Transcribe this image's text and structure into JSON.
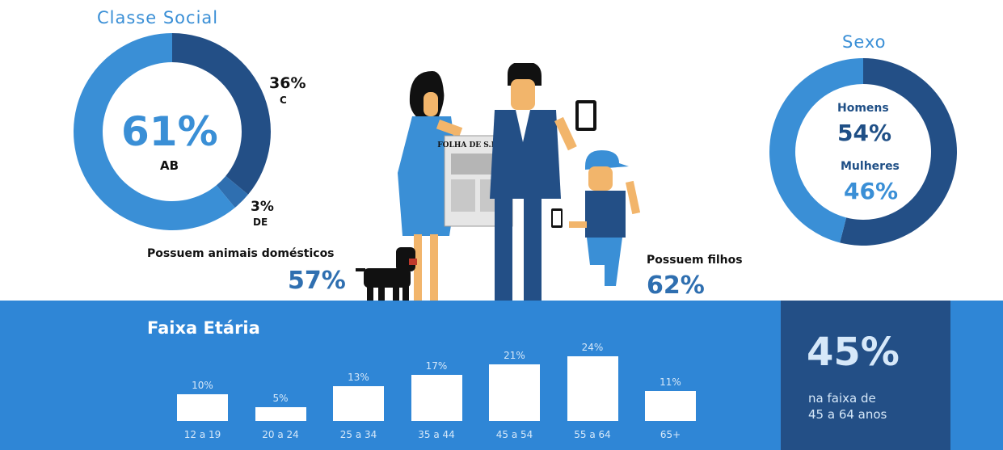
{
  "classe_social": {
    "title": "Classe Social",
    "main_value": "61%",
    "main_label": "AB",
    "c_value": "36%",
    "c_label": "C",
    "de_value": "3%",
    "de_label": "DE",
    "slices": [
      {
        "label": "AB",
        "value": 61,
        "color": "#3a8fd6"
      },
      {
        "label": "C",
        "value": 36,
        "color": "#234f86"
      },
      {
        "label": "DE",
        "value": 3,
        "color": "#2f6fb0"
      }
    ]
  },
  "sexo": {
    "title": "Sexo",
    "homens_label": "Homens",
    "homens_value": "54%",
    "mulheres_label": "Mulheres",
    "mulheres_value": "46%",
    "slices": [
      {
        "label": "Homens",
        "value": 54,
        "color": "#234f86"
      },
      {
        "label": "Mulheres",
        "value": 46,
        "color": "#3a8fd6"
      }
    ]
  },
  "animais": {
    "label": "Possuem animais domésticos",
    "value": "57%"
  },
  "filhos": {
    "label": "Possuem filhos",
    "value": "62%"
  },
  "newspaper": "FOLHA DE S.PAULO",
  "faixa_etaria": {
    "title": "Faixa Etária",
    "highlight_value": "45%",
    "highlight_line1": "na faixa de",
    "highlight_line2": "45 a 64 anos"
  },
  "chart_data": {
    "type": "bar",
    "title": "Faixa Etária",
    "categories": [
      "12 a 19",
      "20 a 24",
      "25 a 34",
      "35 a 44",
      "45 a 54",
      "55 a 64",
      "65+"
    ],
    "values": [
      10,
      5,
      13,
      17,
      21,
      24,
      11
    ],
    "value_labels": [
      "10%",
      "5%",
      "13%",
      "17%",
      "21%",
      "24%",
      "11%"
    ],
    "ylim": [
      0,
      24
    ]
  },
  "colors": {
    "light_blue": "#3a8fd6",
    "navy": "#234f86",
    "band_blue": "#2f86d6"
  }
}
